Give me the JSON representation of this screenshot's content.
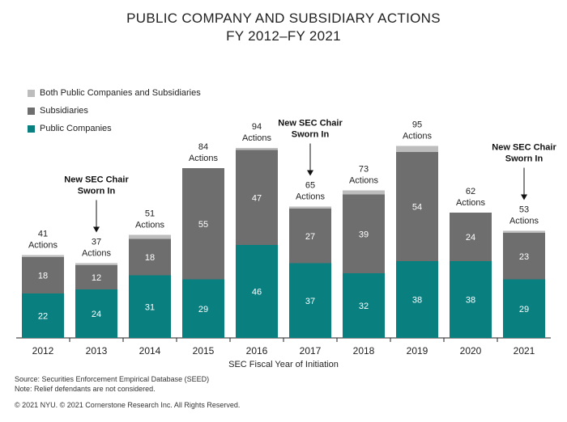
{
  "title_line1": "PUBLIC COMPANY AND SUBSIDIARY ACTIONS",
  "title_line2": "FY 2012–FY 2021",
  "legend": [
    {
      "label": "Both Public Companies and Subsidiaries",
      "color": "#bdbdbd"
    },
    {
      "label": "Subsidiaries",
      "color": "#6e6e6e"
    },
    {
      "label": "Public Companies",
      "color": "#0a7f80"
    }
  ],
  "chart_data": {
    "type": "bar",
    "stacked": true,
    "title": "PUBLIC COMPANY AND SUBSIDIARY ACTIONS FY 2012–FY 2021",
    "xlabel": "SEC Fiscal Year of Initiation",
    "ylabel": "",
    "ylim": [
      0,
      100
    ],
    "categories": [
      "2012",
      "2013",
      "2014",
      "2015",
      "2016",
      "2017",
      "2018",
      "2019",
      "2020",
      "2021"
    ],
    "series": [
      {
        "name": "Public Companies",
        "values": [
          22,
          24,
          31,
          29,
          46,
          37,
          32,
          38,
          38,
          29
        ]
      },
      {
        "name": "Subsidiaries",
        "values": [
          18,
          12,
          18,
          55,
          47,
          27,
          39,
          54,
          24,
          23
        ]
      },
      {
        "name": "Both Public Companies and Subsidiaries",
        "values": [
          1,
          1,
          2,
          0,
          1,
          1,
          2,
          3,
          0,
          1
        ]
      }
    ],
    "totals": [
      41,
      37,
      51,
      84,
      94,
      65,
      73,
      95,
      62,
      53
    ],
    "total_suffix": "Actions",
    "annotations": [
      {
        "category": "2013",
        "line1": "New SEC Chair",
        "line2": "Sworn In"
      },
      {
        "category": "2017",
        "line1": "New SEC Chair",
        "line2": "Sworn In"
      },
      {
        "category": "2021",
        "line1": "New SEC Chair",
        "line2": "Sworn In"
      }
    ]
  },
  "footer": {
    "source": "Source: Securities Enforcement Empirical Database (SEED)",
    "note": "Note: Relief defendants are not considered.",
    "copyright": "© 2021 NYU. © 2021 Cornerstone Research Inc. All Rights Reserved."
  }
}
